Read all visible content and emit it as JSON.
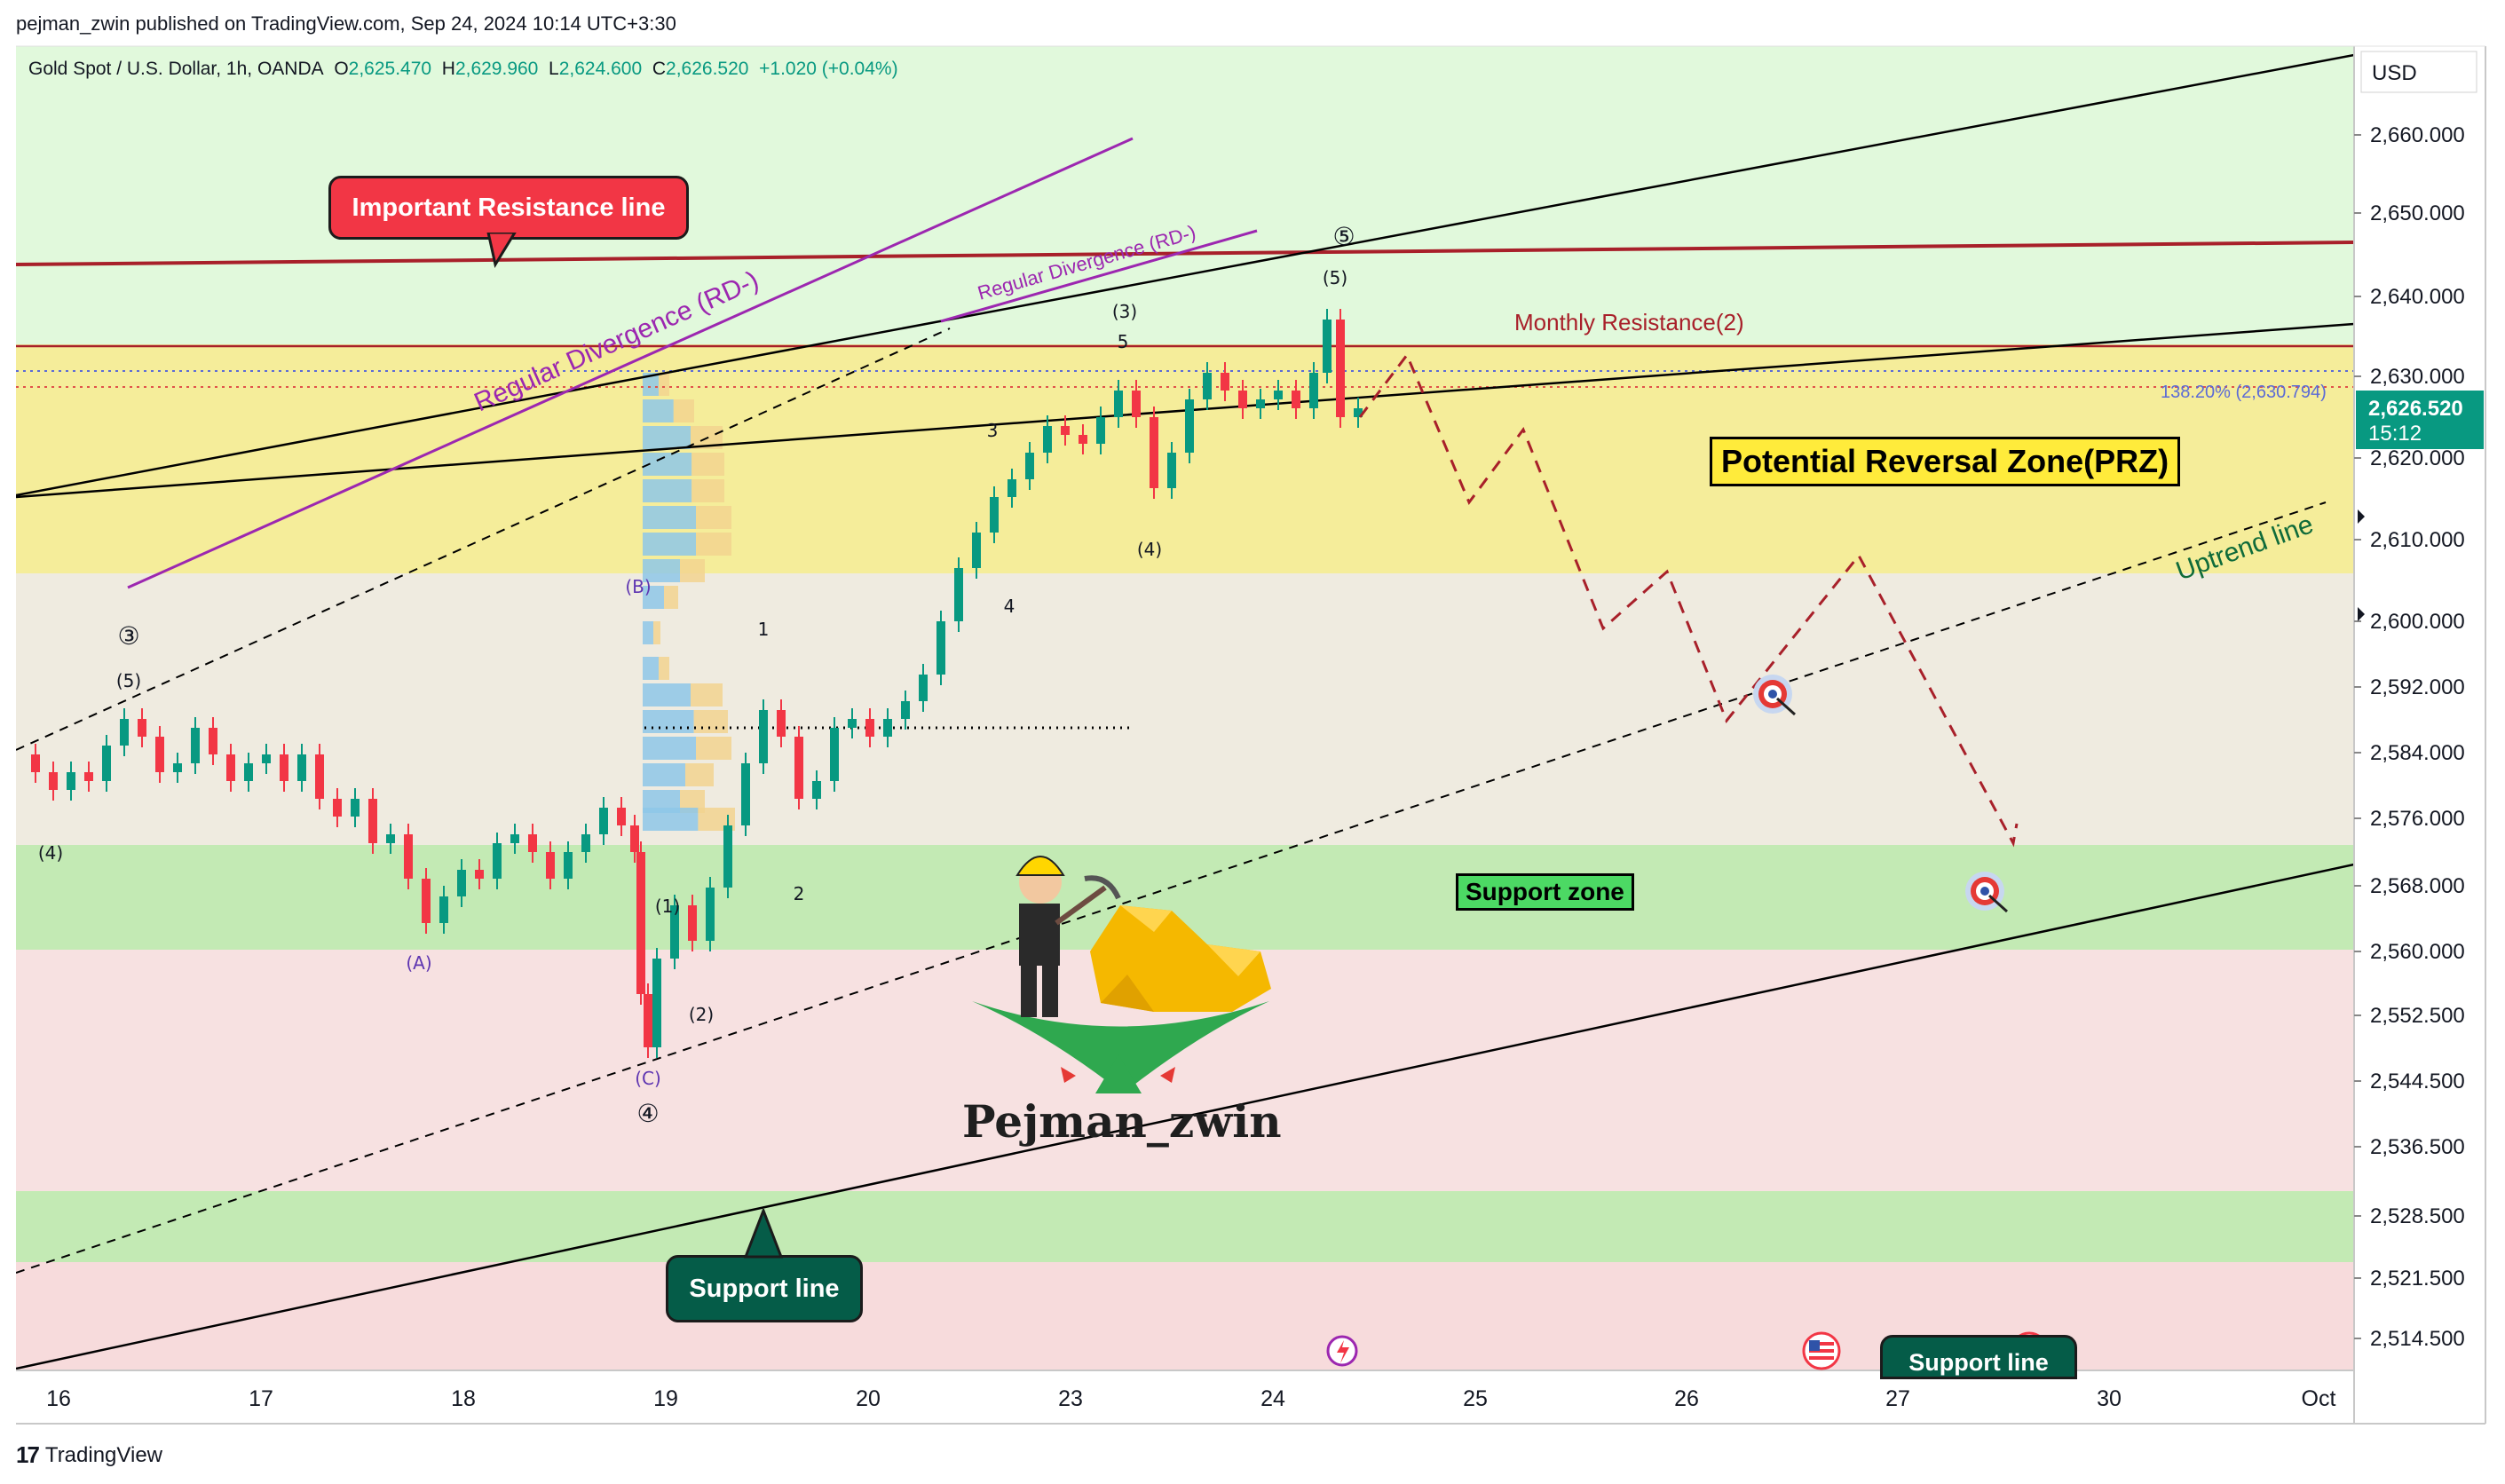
{
  "header": {
    "published_text": "pejman_zwin published on TradingView.com, Sep 24, 2024 10:14 UTC+3:30"
  },
  "ohlc": {
    "symbol": "Gold Spot / U.S. Dollar, 1h, OANDA",
    "o_label": "O",
    "o_value": "2,625.470",
    "h_label": "H",
    "h_value": "2,629.960",
    "l_label": "L",
    "l_value": "2,624.600",
    "c_label": "C",
    "c_value": "2,626.520",
    "change": "+1.020 (+0.04%)"
  },
  "annotations": {
    "important_resistance": "Important Resistance line",
    "support_line": "Support line",
    "support_line_2": "Support line",
    "prz": "Potential Reversal Zone(PRZ)",
    "support_zone": "Support zone",
    "monthly_resistance": "Monthly Resistance(2)",
    "uptrend_line": "Uptrend line",
    "reg_div_1": "Regular Divergence (RD-)",
    "reg_div_2": "Regular Divergence (RD-)",
    "fib_label": "138.20% (2,630.794)",
    "watermark": "Pejman_zwin"
  },
  "waves": [
    {
      "text": "③",
      "p": [
        145,
        726
      ]
    },
    {
      "text": "(5)",
      "p": [
        145,
        774
      ]
    },
    {
      "text": "(4)",
      "p": [
        57,
        968
      ]
    },
    {
      "text": "(A)",
      "p": [
        472,
        1092
      ]
    },
    {
      "text": "(B)",
      "p": [
        719,
        668
      ]
    },
    {
      "text": "(C)",
      "p": [
        730,
        1222
      ]
    },
    {
      "text": "④",
      "p": [
        730,
        1264
      ]
    },
    {
      "text": "(1)",
      "p": [
        752,
        1028
      ]
    },
    {
      "text": "(2)",
      "p": [
        790,
        1150
      ]
    },
    {
      "text": "1",
      "p": [
        860,
        716
      ]
    },
    {
      "text": "2",
      "p": [
        900,
        1014
      ]
    },
    {
      "text": "3",
      "p": [
        1118,
        492
      ]
    },
    {
      "text": "4",
      "p": [
        1137,
        690
      ]
    },
    {
      "text": "(3)",
      "p": [
        1267,
        358
      ]
    },
    {
      "text": "5",
      "p": [
        1265,
        392
      ]
    },
    {
      "text": "(4)",
      "p": [
        1295,
        626
      ]
    },
    {
      "text": "(5)",
      "p": [
        1504,
        320
      ]
    },
    {
      "text": "⑤",
      "p": [
        1514,
        276
      ]
    }
  ],
  "axis": {
    "currency": "USD",
    "price_ticks": [
      "2,660.000",
      "2,650.000",
      "2,640.000",
      "2,630.000",
      "2,620.000",
      "2,610.000",
      "2,600.000",
      "2,592.000",
      "2,584.000",
      "2,576.000",
      "2,568.000",
      "2,560.000",
      "2,552.500",
      "2,544.500",
      "2,536.500",
      "2,528.500",
      "2,521.500",
      "2,514.500"
    ],
    "current_price": "2,626.520",
    "countdown": "15:12",
    "date_ticks": [
      "16",
      "17",
      "18",
      "19",
      "20",
      "23",
      "24",
      "25",
      "26",
      "27",
      "30",
      "Oct"
    ]
  },
  "footer": {
    "brand": "TradingView"
  },
  "chart_data": {
    "type": "candlestick",
    "instrument": "Gold Spot / U.S. Dollar",
    "timeframe": "1h",
    "x_range": [
      "16",
      "Oct"
    ],
    "y_range": [
      2511,
      2667
    ],
    "current_price": 2626.52,
    "zones": [
      {
        "name": "Potential Reversal Zone(PRZ)",
        "from": 2606,
        "to": 2634,
        "color": "#f5ed9a"
      },
      {
        "name": "Support zone",
        "from": 2560.5,
        "to": 2573,
        "color": "#c3eab4"
      },
      {
        "name": "",
        "from": 2524,
        "to": 2531,
        "color": "#c3eab4"
      }
    ],
    "levels": [
      {
        "name": "Important Resistance line",
        "value": 2646.5,
        "color": "#a8202a"
      },
      {
        "name": "Monthly Resistance(2)",
        "value": 2634,
        "color": "#a8202a"
      },
      {
        "name": "138.20% (2,630.794)",
        "value": 2630.8,
        "color": "#5b6bd6"
      },
      {
        "name": "",
        "value": 2628.5,
        "color": "#e0524a"
      }
    ],
    "colors": {
      "up": "#089981",
      "down": "#f23645",
      "projection": "#a8202a"
    }
  }
}
